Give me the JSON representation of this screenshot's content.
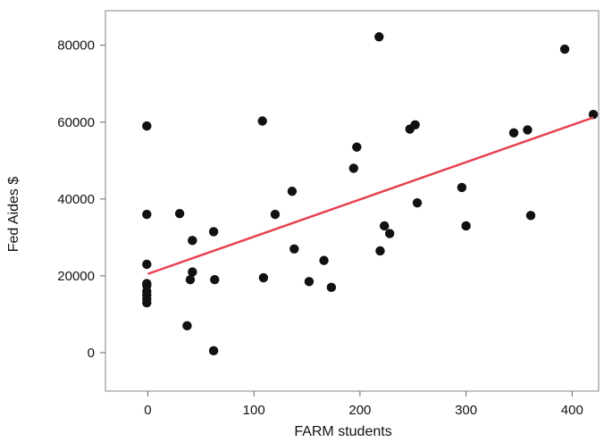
{
  "chart_data": {
    "type": "scatter",
    "title": "",
    "xlabel": "FARM students",
    "ylabel": "Fed Aides $",
    "xlim": [
      -40,
      425
    ],
    "ylim": [
      -10000,
      89000
    ],
    "x_ticks": [
      0,
      100,
      200,
      300,
      400
    ],
    "y_ticks": [
      0,
      20000,
      40000,
      60000,
      80000
    ],
    "x_tick_labels": [
      "0",
      "100",
      "200",
      "300",
      "400"
    ],
    "y_tick_labels": [
      "0",
      "20000",
      "40000",
      "60000",
      "80000"
    ],
    "grid": false,
    "colors": {
      "points": "#111111",
      "fit_line": "#e8404f"
    },
    "points": [
      {
        "x": -1,
        "y": 59000
      },
      {
        "x": -1,
        "y": 36000
      },
      {
        "x": -1,
        "y": 23000
      },
      {
        "x": -1,
        "y": 18000
      },
      {
        "x": -1,
        "y": 17500
      },
      {
        "x": -1,
        "y": 16000
      },
      {
        "x": -1,
        "y": 15000
      },
      {
        "x": -1,
        "y": 14000
      },
      {
        "x": -1,
        "y": 13000
      },
      {
        "x": 30,
        "y": 36200
      },
      {
        "x": 42,
        "y": 29200
      },
      {
        "x": 42,
        "y": 21000
      },
      {
        "x": 40,
        "y": 19000
      },
      {
        "x": 37,
        "y": 7000
      },
      {
        "x": 62,
        "y": 31500
      },
      {
        "x": 63,
        "y": 19000
      },
      {
        "x": 62,
        "y": 500
      },
      {
        "x": 108,
        "y": 60300
      },
      {
        "x": 109,
        "y": 19500
      },
      {
        "x": 120,
        "y": 36000
      },
      {
        "x": 136,
        "y": 42000
      },
      {
        "x": 138,
        "y": 27000
      },
      {
        "x": 152,
        "y": 18500
      },
      {
        "x": 166,
        "y": 24000
      },
      {
        "x": 173,
        "y": 17000
      },
      {
        "x": 194,
        "y": 48000
      },
      {
        "x": 197,
        "y": 53500
      },
      {
        "x": 218,
        "y": 82200
      },
      {
        "x": 219,
        "y": 26500
      },
      {
        "x": 223,
        "y": 33000
      },
      {
        "x": 228,
        "y": 31000
      },
      {
        "x": 247,
        "y": 58200
      },
      {
        "x": 252,
        "y": 59300
      },
      {
        "x": 254,
        "y": 39000
      },
      {
        "x": 296,
        "y": 43000
      },
      {
        "x": 300,
        "y": 33000
      },
      {
        "x": 345,
        "y": 57200
      },
      {
        "x": 358,
        "y": 58000
      },
      {
        "x": 361,
        "y": 35700
      },
      {
        "x": 393,
        "y": 79000
      },
      {
        "x": 420,
        "y": 62000
      }
    ],
    "fit_line": {
      "x": [
        0,
        420
      ],
      "y": [
        20500,
        61200
      ]
    }
  }
}
